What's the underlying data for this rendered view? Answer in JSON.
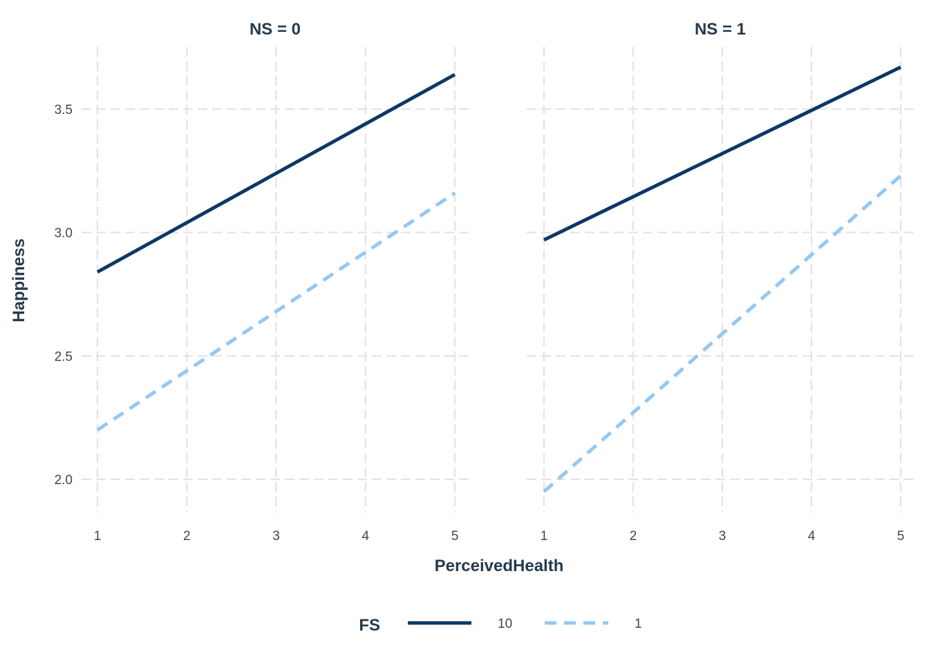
{
  "chart_data": {
    "type": "line",
    "xlabel": "PerceivedHealth",
    "ylabel": "Happiness",
    "xlim": [
      1,
      5
    ],
    "ylim": [
      1.85,
      3.75
    ],
    "x_ticks": [
      1,
      2,
      3,
      4,
      5
    ],
    "y_ticks": [
      2.0,
      2.5,
      3.0,
      3.5
    ],
    "y_tick_labels": [
      "2.0",
      "2.5",
      "3.0",
      "3.5"
    ],
    "grid": true,
    "legend": {
      "title": "FS",
      "position": "bottom",
      "entries": [
        {
          "label": "10",
          "color": "#0d3766",
          "dash": "solid"
        },
        {
          "label": "1",
          "color": "#93c8f3",
          "dash": "dashed"
        }
      ]
    },
    "panels": [
      {
        "title": "NS = 0",
        "series": [
          {
            "name": "10",
            "x": [
              1,
              5
            ],
            "y": [
              2.84,
              3.64
            ],
            "color": "#0d3766",
            "dash": "solid"
          },
          {
            "name": "1",
            "x": [
              1,
              5
            ],
            "y": [
              2.2,
              3.16
            ],
            "color": "#93c8f3",
            "dash": "dashed"
          }
        ]
      },
      {
        "title": "NS = 1",
        "series": [
          {
            "name": "10",
            "x": [
              1,
              5
            ],
            "y": [
              2.97,
              3.67
            ],
            "color": "#0d3766",
            "dash": "solid"
          },
          {
            "name": "1",
            "x": [
              1,
              5
            ],
            "y": [
              1.95,
              3.23
            ],
            "color": "#93c8f3",
            "dash": "dashed"
          }
        ]
      }
    ]
  }
}
